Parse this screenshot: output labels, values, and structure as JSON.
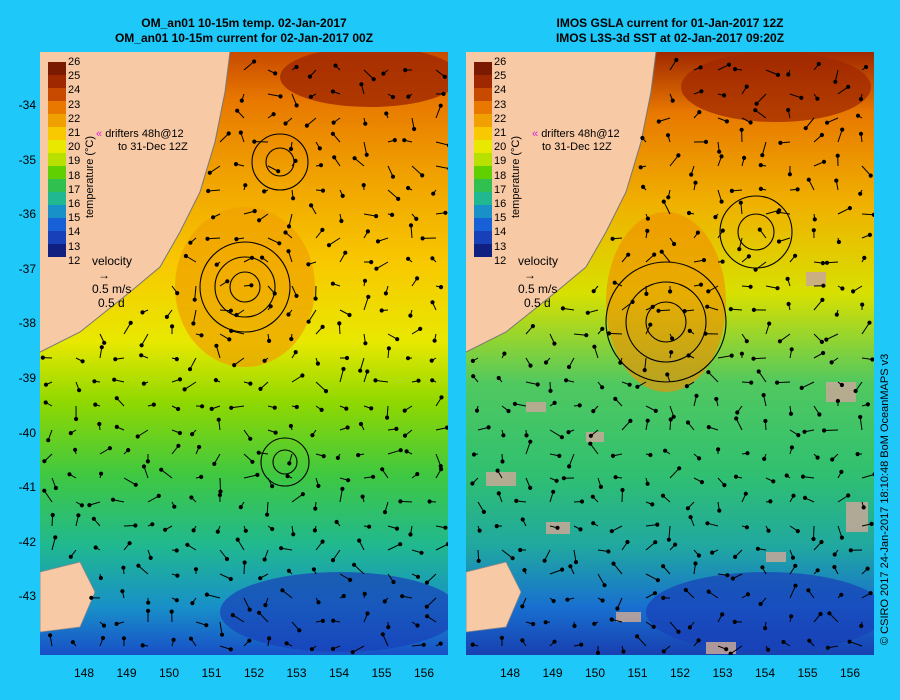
{
  "left_panel": {
    "title_line1": "OM_an01 10-15m temp. 02-Jan-2017",
    "title_line2": "OM_an01 10-15m current for 02-Jan-2017 00Z"
  },
  "right_panel": {
    "title_line1": "IMOS GSLA current for 01-Jan-2017 12Z",
    "title_line2": "IMOS L3S-3d SST at 02-Jan-2017 09:20Z"
  },
  "lat_ticks": [
    "-34",
    "-35",
    "-36",
    "-37",
    "-38",
    "-39",
    "-40",
    "-41",
    "-42",
    "-43"
  ],
  "lon_ticks": [
    "148",
    "149",
    "150",
    "151",
    "152",
    "153",
    "154",
    "155",
    "156"
  ],
  "colorbar": {
    "label": "temperature (°C)",
    "ticks": [
      "26",
      "25",
      "24",
      "23",
      "22",
      "21",
      "20",
      "19",
      "18",
      "17",
      "16",
      "15",
      "14",
      "13",
      "12"
    ],
    "colors": [
      "#7a1a00",
      "#a02800",
      "#c84a00",
      "#e87800",
      "#f0a000",
      "#f8c800",
      "#e8e800",
      "#b8e000",
      "#60d000",
      "#30c050",
      "#20b890",
      "#1890c8",
      "#1860d8",
      "#1840b8",
      "#102080"
    ]
  },
  "drifters_note": {
    "line1": "drifters 48h@12",
    "line2": "to 31-Dec 12Z"
  },
  "velocity_legend": {
    "label": "velocity",
    "speed": "0.5 m/s",
    "duration": "0.5 d"
  },
  "credit": "© CSIRO 2017   24-Jan-2017 18:10:48 BoM OceanMAPS v3"
}
